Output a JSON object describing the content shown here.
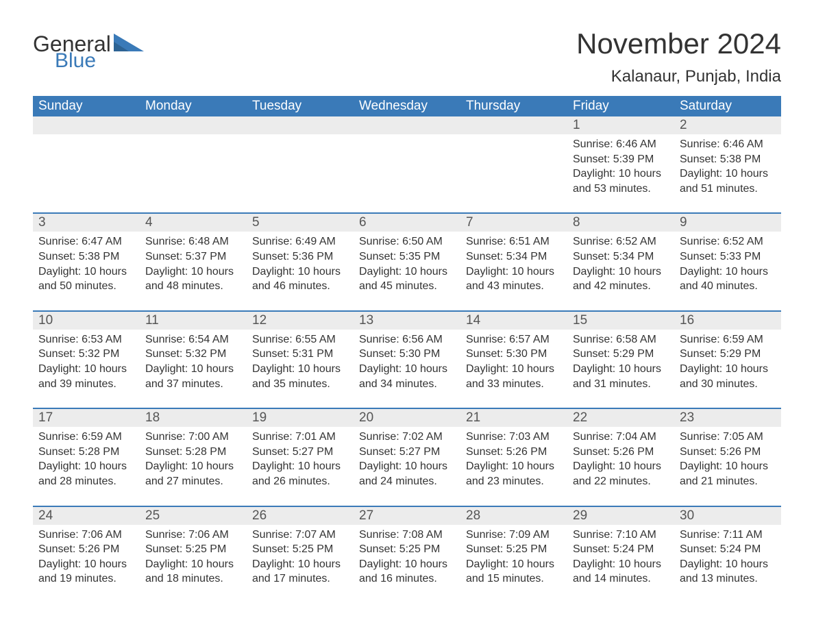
{
  "brand": {
    "text1": "General",
    "text2": "Blue",
    "text1_color": "#333333",
    "text2_color": "#3a7ab8",
    "icon_color": "#3a7ab8"
  },
  "title": "November 2024",
  "location": "Kalanaur, Punjab, India",
  "colors": {
    "header_bg": "#3a7ab8",
    "header_text": "#ffffff",
    "daynum_bg": "#ececec",
    "daynum_text": "#555555",
    "body_text": "#333333",
    "row_border": "#3a7ab8",
    "page_bg": "#ffffff"
  },
  "typography": {
    "title_fontsize": 42,
    "location_fontsize": 24,
    "weekday_fontsize": 19,
    "daynum_fontsize": 19,
    "body_fontsize": 16
  },
  "weekdays": [
    "Sunday",
    "Monday",
    "Tuesday",
    "Wednesday",
    "Thursday",
    "Friday",
    "Saturday"
  ],
  "weeks": [
    [
      {
        "num": "",
        "sunrise": "",
        "sunset": "",
        "daylight": ""
      },
      {
        "num": "",
        "sunrise": "",
        "sunset": "",
        "daylight": ""
      },
      {
        "num": "",
        "sunrise": "",
        "sunset": "",
        "daylight": ""
      },
      {
        "num": "",
        "sunrise": "",
        "sunset": "",
        "daylight": ""
      },
      {
        "num": "",
        "sunrise": "",
        "sunset": "",
        "daylight": ""
      },
      {
        "num": "1",
        "sunrise": "Sunrise: 6:46 AM",
        "sunset": "Sunset: 5:39 PM",
        "daylight": "Daylight: 10 hours and 53 minutes."
      },
      {
        "num": "2",
        "sunrise": "Sunrise: 6:46 AM",
        "sunset": "Sunset: 5:38 PM",
        "daylight": "Daylight: 10 hours and 51 minutes."
      }
    ],
    [
      {
        "num": "3",
        "sunrise": "Sunrise: 6:47 AM",
        "sunset": "Sunset: 5:38 PM",
        "daylight": "Daylight: 10 hours and 50 minutes."
      },
      {
        "num": "4",
        "sunrise": "Sunrise: 6:48 AM",
        "sunset": "Sunset: 5:37 PM",
        "daylight": "Daylight: 10 hours and 48 minutes."
      },
      {
        "num": "5",
        "sunrise": "Sunrise: 6:49 AM",
        "sunset": "Sunset: 5:36 PM",
        "daylight": "Daylight: 10 hours and 46 minutes."
      },
      {
        "num": "6",
        "sunrise": "Sunrise: 6:50 AM",
        "sunset": "Sunset: 5:35 PM",
        "daylight": "Daylight: 10 hours and 45 minutes."
      },
      {
        "num": "7",
        "sunrise": "Sunrise: 6:51 AM",
        "sunset": "Sunset: 5:34 PM",
        "daylight": "Daylight: 10 hours and 43 minutes."
      },
      {
        "num": "8",
        "sunrise": "Sunrise: 6:52 AM",
        "sunset": "Sunset: 5:34 PM",
        "daylight": "Daylight: 10 hours and 42 minutes."
      },
      {
        "num": "9",
        "sunrise": "Sunrise: 6:52 AM",
        "sunset": "Sunset: 5:33 PM",
        "daylight": "Daylight: 10 hours and 40 minutes."
      }
    ],
    [
      {
        "num": "10",
        "sunrise": "Sunrise: 6:53 AM",
        "sunset": "Sunset: 5:32 PM",
        "daylight": "Daylight: 10 hours and 39 minutes."
      },
      {
        "num": "11",
        "sunrise": "Sunrise: 6:54 AM",
        "sunset": "Sunset: 5:32 PM",
        "daylight": "Daylight: 10 hours and 37 minutes."
      },
      {
        "num": "12",
        "sunrise": "Sunrise: 6:55 AM",
        "sunset": "Sunset: 5:31 PM",
        "daylight": "Daylight: 10 hours and 35 minutes."
      },
      {
        "num": "13",
        "sunrise": "Sunrise: 6:56 AM",
        "sunset": "Sunset: 5:30 PM",
        "daylight": "Daylight: 10 hours and 34 minutes."
      },
      {
        "num": "14",
        "sunrise": "Sunrise: 6:57 AM",
        "sunset": "Sunset: 5:30 PM",
        "daylight": "Daylight: 10 hours and 33 minutes."
      },
      {
        "num": "15",
        "sunrise": "Sunrise: 6:58 AM",
        "sunset": "Sunset: 5:29 PM",
        "daylight": "Daylight: 10 hours and 31 minutes."
      },
      {
        "num": "16",
        "sunrise": "Sunrise: 6:59 AM",
        "sunset": "Sunset: 5:29 PM",
        "daylight": "Daylight: 10 hours and 30 minutes."
      }
    ],
    [
      {
        "num": "17",
        "sunrise": "Sunrise: 6:59 AM",
        "sunset": "Sunset: 5:28 PM",
        "daylight": "Daylight: 10 hours and 28 minutes."
      },
      {
        "num": "18",
        "sunrise": "Sunrise: 7:00 AM",
        "sunset": "Sunset: 5:28 PM",
        "daylight": "Daylight: 10 hours and 27 minutes."
      },
      {
        "num": "19",
        "sunrise": "Sunrise: 7:01 AM",
        "sunset": "Sunset: 5:27 PM",
        "daylight": "Daylight: 10 hours and 26 minutes."
      },
      {
        "num": "20",
        "sunrise": "Sunrise: 7:02 AM",
        "sunset": "Sunset: 5:27 PM",
        "daylight": "Daylight: 10 hours and 24 minutes."
      },
      {
        "num": "21",
        "sunrise": "Sunrise: 7:03 AM",
        "sunset": "Sunset: 5:26 PM",
        "daylight": "Daylight: 10 hours and 23 minutes."
      },
      {
        "num": "22",
        "sunrise": "Sunrise: 7:04 AM",
        "sunset": "Sunset: 5:26 PM",
        "daylight": "Daylight: 10 hours and 22 minutes."
      },
      {
        "num": "23",
        "sunrise": "Sunrise: 7:05 AM",
        "sunset": "Sunset: 5:26 PM",
        "daylight": "Daylight: 10 hours and 21 minutes."
      }
    ],
    [
      {
        "num": "24",
        "sunrise": "Sunrise: 7:06 AM",
        "sunset": "Sunset: 5:26 PM",
        "daylight": "Daylight: 10 hours and 19 minutes."
      },
      {
        "num": "25",
        "sunrise": "Sunrise: 7:06 AM",
        "sunset": "Sunset: 5:25 PM",
        "daylight": "Daylight: 10 hours and 18 minutes."
      },
      {
        "num": "26",
        "sunrise": "Sunrise: 7:07 AM",
        "sunset": "Sunset: 5:25 PM",
        "daylight": "Daylight: 10 hours and 17 minutes."
      },
      {
        "num": "27",
        "sunrise": "Sunrise: 7:08 AM",
        "sunset": "Sunset: 5:25 PM",
        "daylight": "Daylight: 10 hours and 16 minutes."
      },
      {
        "num": "28",
        "sunrise": "Sunrise: 7:09 AM",
        "sunset": "Sunset: 5:25 PM",
        "daylight": "Daylight: 10 hours and 15 minutes."
      },
      {
        "num": "29",
        "sunrise": "Sunrise: 7:10 AM",
        "sunset": "Sunset: 5:24 PM",
        "daylight": "Daylight: 10 hours and 14 minutes."
      },
      {
        "num": "30",
        "sunrise": "Sunrise: 7:11 AM",
        "sunset": "Sunset: 5:24 PM",
        "daylight": "Daylight: 10 hours and 13 minutes."
      }
    ]
  ]
}
